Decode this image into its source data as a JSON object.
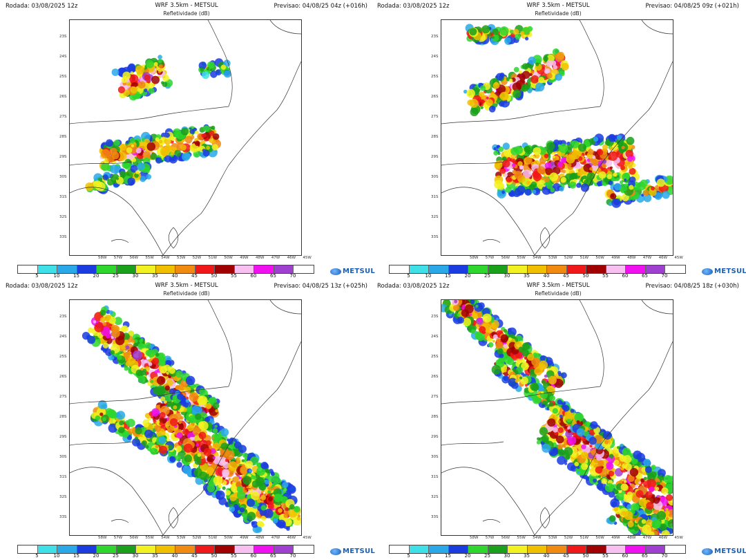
{
  "panels": [
    {
      "run": "Rodada: 03/08/2025 12z",
      "model": "WRF 3.5km - METSUL",
      "field": "Refletividade (dB)",
      "forecast": "Previsao: 04/08/25 04z (+016h)"
    },
    {
      "run": "Rodada: 03/08/2025 12z",
      "model": "WRF 3.5km - METSUL",
      "field": "Refletividade (dB)",
      "forecast": "Previsao: 04/08/25 09z (+021h)"
    },
    {
      "run": "Rodada: 03/08/2025 12z",
      "model": "WRF 3.5km - METSUL",
      "field": "Refletividade (dB)",
      "forecast": "Previsao: 04/08/25 13z (+025h)"
    },
    {
      "run": "Rodada: 03/08/2025 12z",
      "model": "WRF 3.5km - METSUL",
      "field": "Refletividade (dB)",
      "forecast": "Previsao: 04/08/25 18z (+030h)"
    }
  ],
  "lat_labels": [
    "23S",
    "24S",
    "25S",
    "26S",
    "27S",
    "28S",
    "29S",
    "30S",
    "31S",
    "32S",
    "33S"
  ],
  "lon_labels": [
    "58W",
    "57W",
    "56W",
    "55W",
    "54W",
    "53W",
    "52W",
    "51W",
    "50W",
    "49W",
    "48W",
    "47W",
    "46W",
    "45W"
  ],
  "colorbar": {
    "labels": [
      "5",
      "10",
      "15",
      "20",
      "25",
      "30",
      "35",
      "40",
      "45",
      "50",
      "55",
      "60",
      "65",
      "70"
    ],
    "colors": [
      "#ffffff",
      "#40e0e8",
      "#2aa8e8",
      "#1a3ce0",
      "#2ed62e",
      "#1aa01a",
      "#f2f222",
      "#f0c000",
      "#f08a10",
      "#f01818",
      "#a00000",
      "#f8c0f0",
      "#f010f0",
      "#a040d0",
      "#ffffff"
    ]
  },
  "logo": "METSUL"
}
